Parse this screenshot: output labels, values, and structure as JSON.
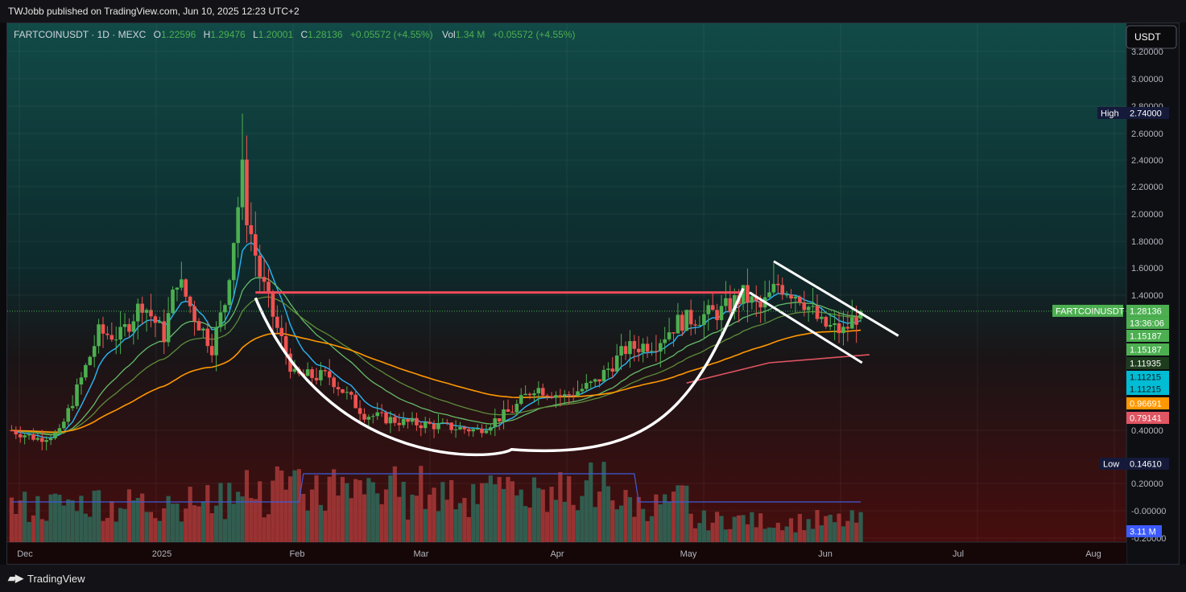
{
  "publisher_line": "TWJobb published on TradingView.com, Jun 10, 2025 12:23 UTC+2",
  "footer_brand": "TradingView",
  "legend": {
    "symbol": "FARTCOINUSDT · 1D · MEXC",
    "o_label": "O",
    "o": "1.22596",
    "h_label": "H",
    "h": "1.29476",
    "l_label": "L",
    "l": "1.20001",
    "c_label": "C",
    "c": "1.28136",
    "change": "+0.05572 (+4.55%)",
    "vol_label": "Vol",
    "vol": "1.34 M",
    "vol_change": "+0.05572 (+4.55%)"
  },
  "currency_label": "USDT",
  "colors": {
    "up": "#4caf50",
    "down": "#ef5350",
    "ema_fast": "#29b6f6",
    "ema_mid": "#66bb6a",
    "ema_slow": "#5e8c3a",
    "ema_orange": "#ff9800",
    "ema_red": "#e05562",
    "pattern": "#ffffff",
    "resistance": "#f04b5a",
    "volume_ma": "#3f5bd9"
  },
  "price_axis_ticks": [
    "3.20000",
    "3.00000",
    "2.80000",
    "2.60000",
    "2.40000",
    "2.20000",
    "2.00000",
    "1.80000",
    "1.60000",
    "1.40000",
    "0.40000",
    "0.20000",
    "-0.00000",
    "-0.20000",
    ".000"
  ],
  "time_axis_labels": [
    "Dec",
    "2025",
    "Feb",
    "Mar",
    "Apr",
    "May",
    "Jun",
    "Jul",
    "Aug"
  ],
  "badges": {
    "high_label": "High",
    "high_value": "2.74000",
    "low_label": "Low",
    "low_value": "0.14610",
    "symbol_tag": "FARTCOINUSDT",
    "last_price": "1.28136",
    "countdown": "13:36:06",
    "ma1": "1.15187",
    "ma2": "1.15187",
    "ma3": "1.11935",
    "ma4": "1.11215",
    "ma5": "1.11215",
    "ma6": "0.96691",
    "ma7": "0.79141",
    "volume_value": "3.11 M"
  },
  "chart_data": {
    "type": "candlestick",
    "title": "FARTCOINUSDT · 1D · MEXC",
    "y_axis": "price (USDT, compressed scale)",
    "ylim": [
      0.0,
      3.25
    ],
    "x_range": [
      "2024-11-26",
      "2025-08-10"
    ],
    "legend_placement": "top-left",
    "grid": true,
    "all_time_high": 2.74,
    "all_time_low": 0.1461,
    "last_close": 1.28136,
    "price_path": [
      [
        "2024-11-27",
        0.4
      ],
      [
        "2024-12-03",
        0.34
      ],
      [
        "2024-12-08",
        0.38
      ],
      [
        "2024-12-13",
        0.78
      ],
      [
        "2024-12-17",
        1.12
      ],
      [
        "2024-12-22",
        1.1
      ],
      [
        "2024-12-27",
        1.35
      ],
      [
        "2025-01-01",
        1.1
      ],
      [
        "2025-01-04",
        1.53
      ],
      [
        "2025-01-08",
        1.25
      ],
      [
        "2025-01-12",
        1.02
      ],
      [
        "2025-01-15",
        1.35
      ],
      [
        "2025-01-19",
        2.3
      ],
      [
        "2025-01-20",
        2.0
      ],
      [
        "2025-01-23",
        1.55
      ],
      [
        "2025-01-27",
        1.15
      ],
      [
        "2025-01-31",
        0.8
      ],
      [
        "2025-02-08",
        0.8
      ],
      [
        "2025-02-16",
        0.52
      ],
      [
        "2025-02-25",
        0.46
      ],
      [
        "2025-03-06",
        0.43
      ],
      [
        "2025-03-14",
        0.4
      ],
      [
        "2025-03-22",
        0.55
      ],
      [
        "2025-03-27",
        0.72
      ],
      [
        "2025-04-03",
        0.65
      ],
      [
        "2025-04-10",
        0.75
      ],
      [
        "2025-04-17",
        1.0
      ],
      [
        "2025-04-24",
        1.05
      ],
      [
        "2025-04-29",
        1.2
      ],
      [
        "2025-05-05",
        1.25
      ],
      [
        "2025-05-09",
        1.28
      ],
      [
        "2025-05-14",
        1.4
      ],
      [
        "2025-05-18",
        1.3
      ],
      [
        "2025-05-22",
        1.48
      ],
      [
        "2025-05-27",
        1.4
      ],
      [
        "2025-06-01",
        1.18
      ],
      [
        "2025-06-06",
        1.13
      ],
      [
        "2025-06-10",
        1.28
      ]
    ],
    "moving_averages": [
      {
        "value": 1.15187
      },
      {
        "value": 1.11935
      },
      {
        "value": 1.11215
      },
      {
        "value": 0.96691
      },
      {
        "value": 0.79141
      }
    ],
    "annotations": [
      {
        "kind": "horizontal_resistance",
        "price": 1.42,
        "from": "2025-01-22",
        "to": "2025-05-14"
      },
      {
        "kind": "cup_curve",
        "from": "2025-01-22",
        "bottom": "2025-03-07",
        "to": "2025-05-14"
      },
      {
        "kind": "descending_channel",
        "from": "2025-05-21",
        "to": "2025-06-14"
      }
    ]
  }
}
